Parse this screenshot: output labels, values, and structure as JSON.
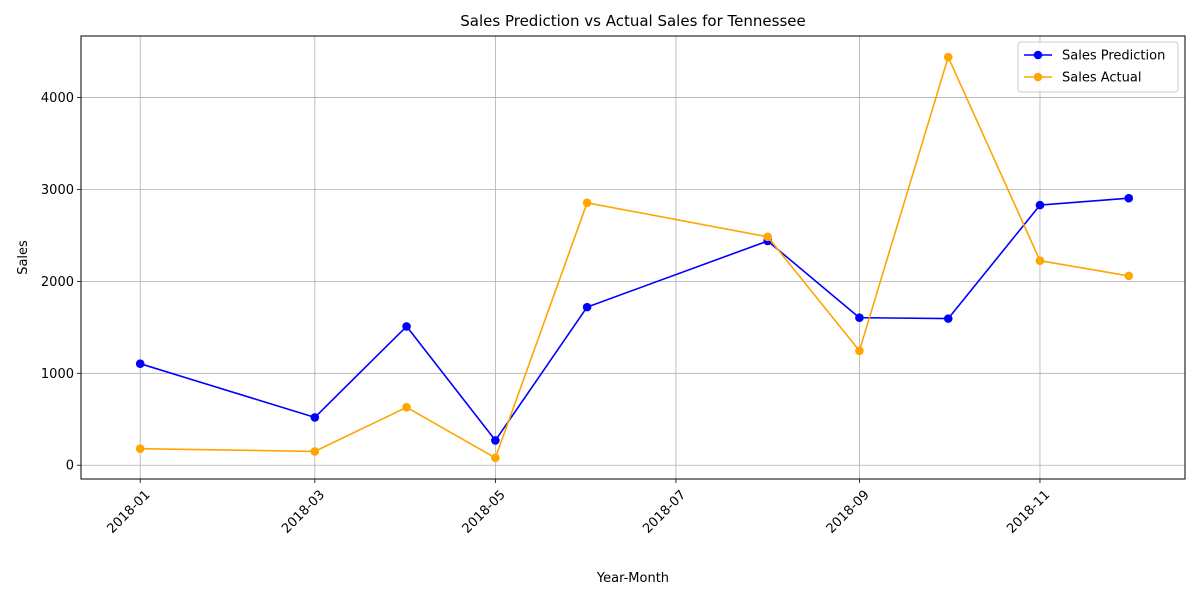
{
  "chart_data": {
    "type": "line",
    "title": "Sales Prediction vs Actual Sales for Tennessee",
    "xlabel": "Year-Month",
    "ylabel": "Sales",
    "x": [
      "2018-01-01",
      "2018-03-01",
      "2018-04-01",
      "2018-05-01",
      "2018-06-01",
      "2018-08-01",
      "2018-09-01",
      "2018-10-01",
      "2018-11-01",
      "2018-12-01"
    ],
    "x_ticks": [
      "2018-01",
      "2018-03",
      "2018-05",
      "2018-07",
      "2018-09",
      "2018-11"
    ],
    "x_range": [
      "2017-12-12",
      "2018-12-20"
    ],
    "y_ticks": [
      0,
      1000,
      2000,
      3000,
      4000
    ],
    "ylim": [
      -150,
      4670
    ],
    "grid": true,
    "legend_position": "top-right",
    "series": [
      {
        "name": "Sales Prediction",
        "color": "#0000ff",
        "values": [
          1105,
          520,
          1510,
          270,
          1720,
          2440,
          1605,
          1595,
          2830,
          2905
        ]
      },
      {
        "name": "Sales Actual",
        "color": "#ffa500",
        "values": [
          180,
          150,
          630,
          80,
          2855,
          2485,
          1245,
          4440,
          2225,
          2060
        ]
      }
    ]
  }
}
